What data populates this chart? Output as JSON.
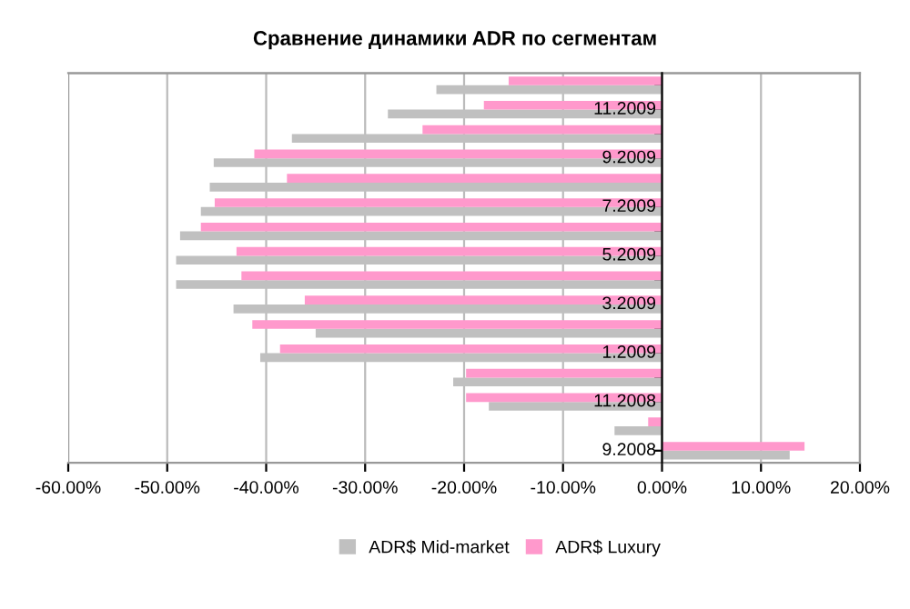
{
  "chart_data": {
    "type": "bar",
    "orientation": "horizontal",
    "title": "Сравнение динамики ADR по сегментам",
    "categories": [
      null,
      "11.2009",
      null,
      "9.2009",
      null,
      "7.2009",
      null,
      "5.2009",
      null,
      "3.2009",
      null,
      "1.2009",
      null,
      "11.2008",
      null,
      "9.2008"
    ],
    "series": [
      {
        "name": "ADR$ Mid-market",
        "color": "#c0c0c0",
        "values": [
          -22.8,
          -27.7,
          -37.4,
          -45.3,
          -45.7,
          -46.6,
          -48.7,
          -49.1,
          -49.1,
          -43.3,
          -35.0,
          -40.6,
          -21.1,
          -17.5,
          -4.8,
          12.9
        ]
      },
      {
        "name": "ADR$ Luxury",
        "color": "#ff99cc",
        "values": [
          -15.5,
          -18.0,
          -24.2,
          -41.2,
          -37.9,
          -45.2,
          -46.6,
          -43.0,
          -42.5,
          -36.1,
          -41.4,
          -38.6,
          -19.8,
          -19.8,
          -1.4,
          14.4
        ]
      }
    ],
    "xlim": [
      -60,
      20
    ],
    "xticks": [
      {
        "value": -60,
        "label": "-60.00%"
      },
      {
        "value": -50,
        "label": "-50.00%"
      },
      {
        "value": -40,
        "label": "-40.00%"
      },
      {
        "value": -30,
        "label": "-30.00%"
      },
      {
        "value": -20,
        "label": "-20.00%"
      },
      {
        "value": -10,
        "label": "-10.00%"
      },
      {
        "value": 0,
        "label": "0.00%"
      },
      {
        "value": 10,
        "label": "10.00%"
      },
      {
        "value": 20,
        "label": "20.00%"
      }
    ],
    "grid": "x",
    "legend": "bottom"
  }
}
